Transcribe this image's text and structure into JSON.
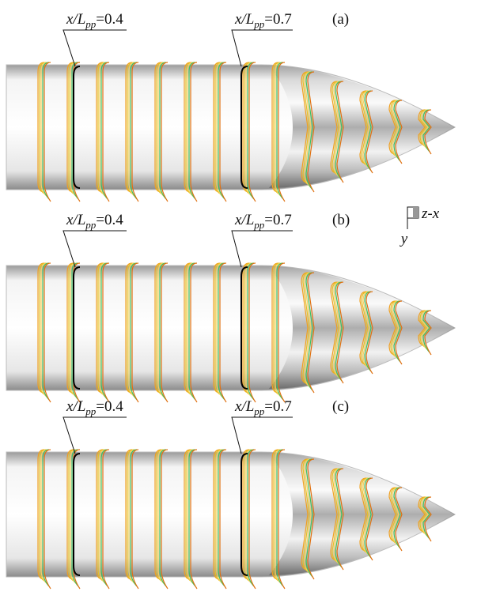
{
  "panels": [
    {
      "label": "(a)",
      "annotations": [
        {
          "var": "x/L",
          "sub": "pp",
          "value": "=0.4"
        },
        {
          "var": "x/L",
          "sub": "pp",
          "value": "=0.7"
        }
      ]
    },
    {
      "label": "(b)",
      "annotations": [
        {
          "var": "x/L",
          "sub": "pp",
          "value": "=0.4"
        },
        {
          "var": "x/L",
          "sub": "pp",
          "value": "=0.7"
        }
      ]
    },
    {
      "label": "(c)",
      "annotations": [
        {
          "var": "x/L",
          "sub": "pp",
          "value": "=0.4"
        },
        {
          "var": "x/L",
          "sub": "pp",
          "value": "=0.7"
        }
      ]
    }
  ],
  "axes": {
    "horizontal": "z-x",
    "vertical": "y"
  }
}
